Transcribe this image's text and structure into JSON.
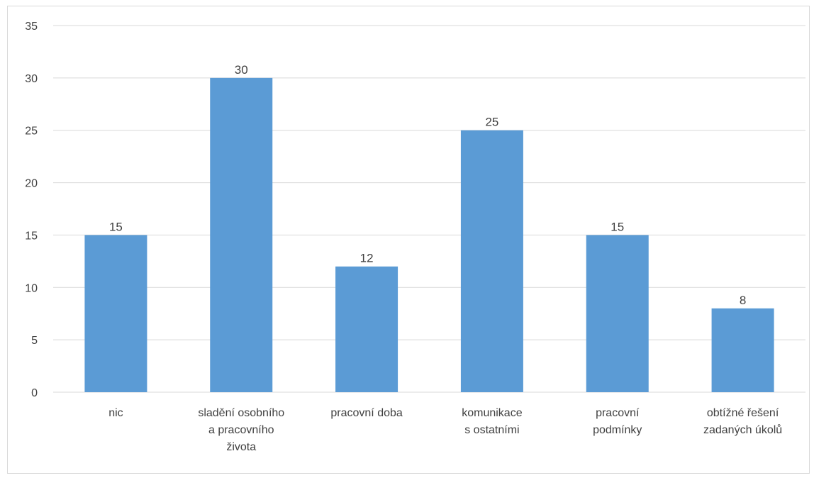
{
  "chart_data": {
    "type": "bar",
    "categories": [
      [
        "nic"
      ],
      [
        "sladění osobního",
        "a pracovního",
        "života"
      ],
      [
        "pracovní doba"
      ],
      [
        "komunikace",
        "s ostatními"
      ],
      [
        "pracovní",
        "podmínky"
      ],
      [
        "obtížné řešení",
        "zadaných úkolů"
      ]
    ],
    "values": [
      15,
      30,
      12,
      25,
      15,
      8
    ],
    "data_labels": [
      "15",
      "30",
      "12",
      "25",
      "15",
      "8"
    ],
    "ylim": [
      0,
      35
    ],
    "yticks": [
      0,
      5,
      10,
      15,
      20,
      25,
      30,
      35
    ],
    "title": "",
    "xlabel": "",
    "ylabel": "",
    "grid": true,
    "legend": "none",
    "bar_color": "#5b9bd5",
    "grid_color": "#d9d9d9"
  }
}
